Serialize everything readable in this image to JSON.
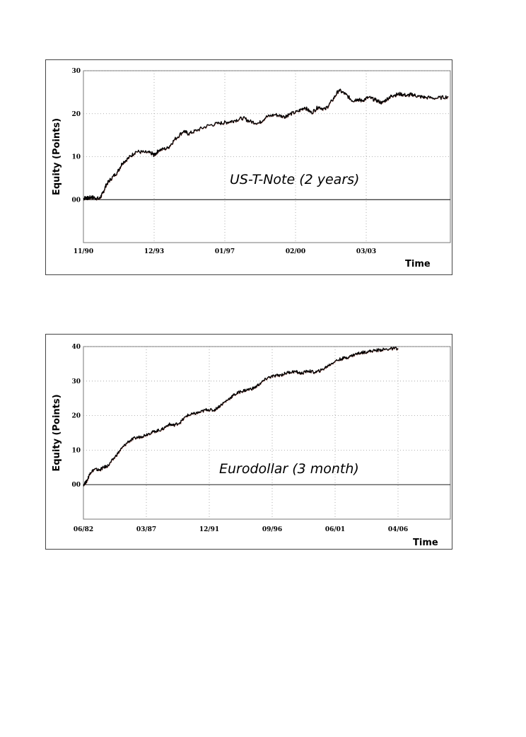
{
  "chart_data": [
    {
      "type": "line",
      "title": "US-T-Note (2 years)",
      "xlabel": "Time",
      "ylabel": "Equity (Points)",
      "ylim": [
        -10,
        30
      ],
      "yticks": [
        0,
        10,
        20,
        30
      ],
      "ytick_labels": [
        "00",
        "10",
        "20",
        "30"
      ],
      "xticks": [
        "11/90",
        "12/93",
        "01/97",
        "02/00",
        "03/03"
      ],
      "grid": true,
      "series": [
        {
          "x": [
            0.0,
            0.1,
            0.2,
            0.35,
            0.5,
            0.7,
            0.85,
            1.0,
            1.2,
            1.5,
            1.7,
            2.0,
            2.3,
            2.7,
            3.0,
            3.1,
            3.3,
            3.7,
            4.0,
            4.4,
            4.6,
            5.0,
            5.5,
            6.0,
            6.3,
            6.6,
            7.0,
            7.3,
            7.7,
            8.0,
            8.4,
            8.8,
            9.0,
            9.4,
            9.7,
            10.0,
            10.3,
            10.6,
            10.9,
            11.2,
            11.5,
            11.8,
            12.0,
            12.2,
            12.5,
            12.8,
            13.1,
            13.4,
            13.6,
            13.9,
            14.2,
            14.4,
            14.7,
            15.0,
            15.5,
            16.0
          ],
          "y": [
            0.2,
            0.5,
            0.3,
            0.6,
            0.4,
            0.2,
            1.5,
            3.5,
            4.8,
            6.5,
            8.5,
            9.8,
            11.2,
            11.0,
            10.8,
            10.3,
            11.5,
            12.0,
            14.0,
            16.0,
            15.3,
            16.2,
            17.3,
            17.8,
            18.0,
            18.4,
            19.0,
            18.2,
            17.8,
            19.2,
            19.8,
            19.3,
            19.8,
            20.5,
            21.5,
            20.2,
            21.6,
            21.0,
            23.0,
            25.5,
            24.5,
            23.0,
            23.4,
            23.0,
            23.8,
            23.2,
            22.5,
            23.8,
            24.3,
            24.6,
            24.2,
            24.5,
            24.0,
            23.8,
            23.6,
            24.0
          ]
        }
      ]
    },
    {
      "type": "line",
      "title": "Eurodollar (3 month)",
      "xlabel": "Time",
      "ylabel": "Equity (Points)",
      "ylim": [
        -10,
        40
      ],
      "yticks": [
        0,
        10,
        20,
        30,
        40
      ],
      "ytick_labels": [
        "00",
        "10",
        "20",
        "30",
        "40"
      ],
      "xticks": [
        "06/82",
        "03/87",
        "12/91",
        "09/96",
        "06/01",
        "04/06"
      ],
      "grid": true,
      "series": [
        {
          "x": [
            0.0,
            0.15,
            0.3,
            0.5,
            0.7,
            0.9,
            1.1,
            1.4,
            1.7,
            2.0,
            2.3,
            2.6,
            2.9,
            3.2,
            3.5,
            3.8,
            4.0,
            4.3,
            4.6,
            4.9,
            5.2,
            5.5,
            5.8,
            6.1,
            6.4,
            6.7,
            7.0,
            7.3,
            7.6,
            7.9,
            8.2,
            8.5,
            8.8,
            9.1,
            9.4,
            9.7,
            10.0,
            10.3,
            10.6,
            10.9,
            11.2,
            11.5,
            11.8,
            12.1,
            12.4,
            12.7,
            13.0,
            13.3,
            13.6,
            14.0
          ],
          "y": [
            0.0,
            1.0,
            3.5,
            4.5,
            4.2,
            5.0,
            5.5,
            8.0,
            10.5,
            12.5,
            13.5,
            14.0,
            14.8,
            15.5,
            16.0,
            17.5,
            17.2,
            18.0,
            20.0,
            20.5,
            21.0,
            21.8,
            21.5,
            23.0,
            24.5,
            26.0,
            27.0,
            27.5,
            28.0,
            29.5,
            31.0,
            31.5,
            31.8,
            32.5,
            32.8,
            32.2,
            33.0,
            32.5,
            33.2,
            34.5,
            35.8,
            36.5,
            37.0,
            37.8,
            38.3,
            38.6,
            38.9,
            39.1,
            39.3,
            39.5
          ]
        }
      ]
    }
  ]
}
